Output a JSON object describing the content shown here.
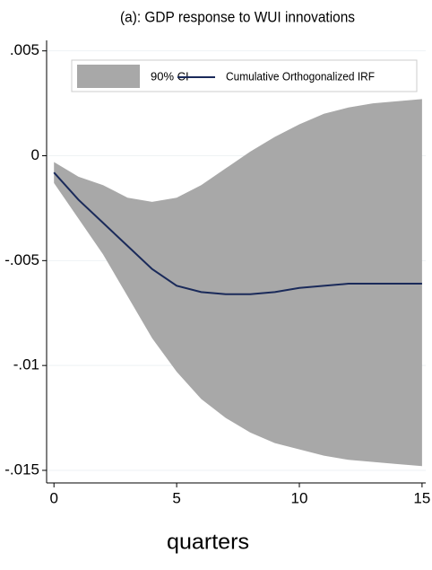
{
  "chart_data": {
    "type": "line",
    "title": "(a): GDP response to WUI innovations",
    "x_label": "quarters",
    "x": [
      0,
      1,
      2,
      3,
      4,
      5,
      6,
      7,
      8,
      9,
      10,
      11,
      12,
      13,
      14,
      15
    ],
    "ci": {
      "name": "90% CI",
      "color": "#a8a8a8",
      "upper": [
        -0.0003,
        -0.001,
        -0.0014,
        -0.002,
        -0.0022,
        -0.002,
        -0.0014,
        -0.0006,
        0.0002,
        0.0009,
        0.0015,
        0.002,
        0.0023,
        0.0025,
        0.0026,
        0.0027
      ],
      "lower": [
        -0.0013,
        -0.003,
        -0.0047,
        -0.0067,
        -0.0087,
        -0.0103,
        -0.0116,
        -0.0125,
        -0.0132,
        -0.0137,
        -0.014,
        -0.0143,
        -0.0145,
        -0.0146,
        -0.0147,
        -0.0148
      ]
    },
    "series": [
      {
        "name": "Cumulative Orthogonalized IRF",
        "color": "#1a2a5a",
        "values": [
          -0.0008,
          -0.0021,
          -0.0032,
          -0.0043,
          -0.0054,
          -0.0062,
          -0.0065,
          -0.0066,
          -0.0066,
          -0.0065,
          -0.0063,
          -0.0062,
          -0.0061,
          -0.0061,
          -0.0061,
          -0.0061
        ]
      }
    ],
    "xlim": [
      -0.3,
      15.15
    ],
    "xticks": [
      0,
      5,
      10,
      15
    ],
    "ylim": [
      -0.0156,
      0.0055
    ],
    "yticks": [
      {
        "value": 0.005,
        "label": ".005"
      },
      0,
      {
        "value": -0.005,
        "label": "-.005"
      },
      {
        "value": -0.01,
        "label": "-.01"
      },
      {
        "value": -0.015,
        "label": "-.015"
      }
    ],
    "grid": true
  }
}
